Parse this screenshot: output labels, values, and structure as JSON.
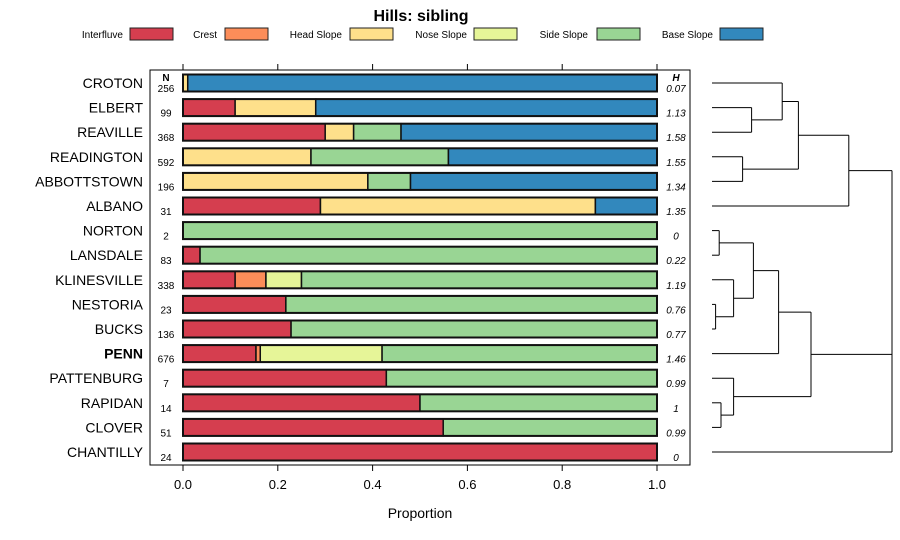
{
  "chart_data": {
    "type": "bar",
    "subtype": "stacked-horizontal-proportion",
    "title": "Hills: sibling",
    "xlabel": "Proportion",
    "xlim": [
      0,
      1
    ],
    "xticks": [
      "0.0",
      "0.2",
      "0.4",
      "0.6",
      "0.8",
      "1.0"
    ],
    "xtick_values": [
      0,
      0.2,
      0.4,
      0.6,
      0.8,
      1.0
    ],
    "n_header": "N",
    "h_header": "H",
    "legend_position": "top",
    "series": [
      {
        "name": "Interfluve",
        "color": "#D53E4F"
      },
      {
        "name": "Crest",
        "color": "#FC8D59"
      },
      {
        "name": "Head Slope",
        "color": "#FEE08B"
      },
      {
        "name": "Nose Slope",
        "color": "#E6F598"
      },
      {
        "name": "Side Slope",
        "color": "#99D594"
      },
      {
        "name": "Base Slope",
        "color": "#3288BD"
      }
    ],
    "categories": [
      "CROTON",
      "ELBERT",
      "REAVILLE",
      "READINGTON",
      "ABBOTTSTOWN",
      "ALBANO",
      "NORTON",
      "LANSDALE",
      "KLINESVILLE",
      "NESTORIA",
      "BUCKS",
      "PENN",
      "PATTENBURG",
      "RAPIDAN",
      "CLOVER",
      "CHANTILLY"
    ],
    "highlight": "PENN",
    "n": [
      "256",
      "99",
      "368",
      "592",
      "196",
      "31",
      "2",
      "83",
      "338",
      "23",
      "136",
      "676",
      "7",
      "14",
      "51",
      "24"
    ],
    "h": [
      "0.07",
      "1.13",
      "1.58",
      "1.55",
      "1.34",
      "1.35",
      "0",
      "0.22",
      "1.19",
      "0.76",
      "0.77",
      "1.46",
      "0.99",
      "1",
      "0.99",
      "0"
    ],
    "values": [
      [
        0,
        0,
        0.01,
        0,
        0,
        0.99
      ],
      [
        0.11,
        0,
        0.17,
        0,
        0,
        0.72
      ],
      [
        0.3,
        0,
        0.06,
        0,
        0.1,
        0.54
      ],
      [
        0,
        0,
        0.27,
        0,
        0.29,
        0.44
      ],
      [
        0,
        0,
        0.39,
        0,
        0.09,
        0.52
      ],
      [
        0.29,
        0,
        0.58,
        0,
        0,
        0.13
      ],
      [
        0,
        0,
        0,
        0,
        1.0,
        0
      ],
      [
        0.036,
        0,
        0,
        0,
        0.964,
        0
      ],
      [
        0.11,
        0.065,
        0,
        0.075,
        0.75,
        0
      ],
      [
        0.217,
        0,
        0,
        0,
        0.783,
        0
      ],
      [
        0.228,
        0,
        0,
        0,
        0.772,
        0
      ],
      [
        0.154,
        0.009,
        0,
        0.257,
        0.58,
        0
      ],
      [
        0.429,
        0,
        0,
        0,
        0.571,
        0
      ],
      [
        0.5,
        0,
        0,
        0,
        0.5,
        0
      ],
      [
        0.549,
        0,
        0,
        0,
        0.451,
        0
      ],
      [
        1.0,
        0,
        0,
        0,
        0,
        0
      ]
    ],
    "dendrogram": {
      "note": "merges reference leaf indices (0-15) or earlier merges as 'm<k>'; height is relative dissimilarity 0-1",
      "merges": [
        {
          "a": 1,
          "b": 2,
          "height": 0.22
        },
        {
          "a": 0,
          "b": "m0",
          "height": 0.39
        },
        {
          "a": 3,
          "b": 4,
          "height": 0.17
        },
        {
          "a": "m1",
          "b": "m2",
          "height": 0.48
        },
        {
          "a": "m3",
          "b": 5,
          "height": 0.76
        },
        {
          "a": 6,
          "b": 7,
          "height": 0.04
        },
        {
          "a": 9,
          "b": 10,
          "height": 0.02
        },
        {
          "a": 8,
          "b": "m6",
          "height": 0.12
        },
        {
          "a": "m5",
          "b": "m7",
          "height": 0.23
        },
        {
          "a": "m8",
          "b": 11,
          "height": 0.37
        },
        {
          "a": 13,
          "b": 14,
          "height": 0.05
        },
        {
          "a": 12,
          "b": "m10",
          "height": 0.12
        },
        {
          "a": "m9",
          "b": "m11",
          "height": 0.55
        },
        {
          "a": "m4",
          "b": "m12",
          "c": 15,
          "height": 1.0
        }
      ]
    }
  }
}
